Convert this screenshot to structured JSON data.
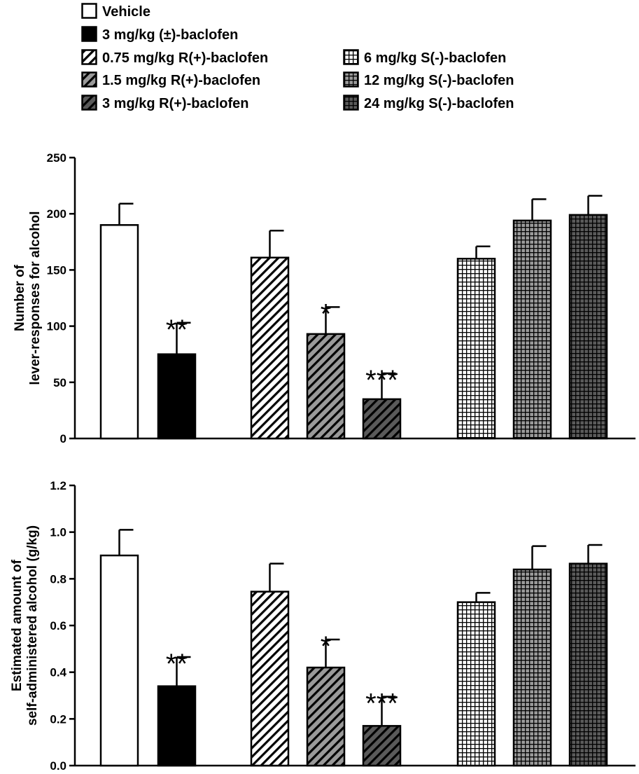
{
  "legend": {
    "items": [
      {
        "key": "vehicle",
        "label": "Vehicle"
      },
      {
        "key": "rac3",
        "label": "3 mg/kg (±)-baclofen"
      },
      {
        "key": "r075",
        "label": "0.75 mg/kg R(+)-baclofen"
      },
      {
        "key": "r15",
        "label": "1.5 mg/kg R(+)-baclofen"
      },
      {
        "key": "r3",
        "label": "3 mg/kg R(+)-baclofen"
      },
      {
        "key": "s6",
        "label": "6 mg/kg S(-)-baclofen"
      },
      {
        "key": "s12",
        "label": "12 mg/kg S(-)-baclofen"
      },
      {
        "key": "s24",
        "label": "24 mg/kg S(-)-baclofen"
      }
    ]
  },
  "styles": {
    "vehicle": {
      "pattern": "open",
      "fill": "#ffffff",
      "line": "#000000"
    },
    "rac3": {
      "pattern": "solid",
      "fill": "#000000",
      "line": "#000000"
    },
    "r075": {
      "pattern": "diag",
      "fill": "#ffffff",
      "line": "#000000"
    },
    "r15": {
      "pattern": "diag",
      "fill": "#9a9a9a",
      "line": "#000000"
    },
    "r3": {
      "pattern": "diag",
      "fill": "#5a5a5a",
      "line": "#000000"
    },
    "s6": {
      "pattern": "grid",
      "fill": "#ffffff",
      "line": "#000000"
    },
    "s12": {
      "pattern": "grid",
      "fill": "#9a9a9a",
      "line": "#000000"
    },
    "s24": {
      "pattern": "grid",
      "fill": "#5a5a5a",
      "line": "#000000"
    }
  },
  "chart_data": [
    {
      "type": "bar",
      "title": "",
      "xlabel": "",
      "ylabel": "Number of lever-responses for alcohol",
      "ylabel_lines": [
        "Number of",
        "lever-responses for alcohol"
      ],
      "ylim": [
        0,
        250
      ],
      "yticks": [
        0,
        50,
        100,
        150,
        200,
        250
      ],
      "ytick_labels": [
        "0",
        "50",
        "100",
        "150",
        "200",
        "250"
      ],
      "categories": [
        "Vehicle",
        "3 mg/kg (±)-baclofen",
        "0.75 mg/kg R(+)-baclofen",
        "1.5 mg/kg R(+)-baclofen",
        "3 mg/kg R(+)-baclofen",
        "6 mg/kg S(-)-baclofen",
        "12 mg/kg S(-)-baclofen",
        "24 mg/kg S(-)-baclofen"
      ],
      "keys": [
        "vehicle",
        "rac3",
        "r075",
        "r15",
        "r3",
        "s6",
        "s12",
        "s24"
      ],
      "values": [
        190,
        75,
        161,
        93,
        35,
        160,
        194,
        199
      ],
      "errors": [
        19,
        28,
        24,
        24,
        23,
        11,
        19,
        17
      ],
      "significance": [
        "",
        "**",
        "",
        "*",
        "***",
        "",
        "",
        ""
      ]
    },
    {
      "type": "bar",
      "title": "",
      "xlabel": "",
      "ylabel": "Estimated amount of self-administered alcohol (g/kg)",
      "ylabel_lines": [
        "Estimated amount of",
        "self-administered alcohol (g/kg)"
      ],
      "ylim": [
        0,
        1.2
      ],
      "yticks": [
        0,
        0.2,
        0.4,
        0.6,
        0.8,
        1.0,
        1.2
      ],
      "ytick_labels": [
        "0.0",
        "0.2",
        "0.4",
        "0.6",
        "0.8",
        "1.0",
        "1.2"
      ],
      "categories": [
        "Vehicle",
        "3 mg/kg (±)-baclofen",
        "0.75 mg/kg R(+)-baclofen",
        "1.5 mg/kg R(+)-baclofen",
        "3 mg/kg R(+)-baclofen",
        "6 mg/kg S(-)-baclofen",
        "12 mg/kg S(-)-baclofen",
        "24 mg/kg S(-)-baclofen"
      ],
      "keys": [
        "vehicle",
        "rac3",
        "r075",
        "r15",
        "r3",
        "s6",
        "s12",
        "s24"
      ],
      "values": [
        0.9,
        0.34,
        0.745,
        0.42,
        0.17,
        0.7,
        0.84,
        0.865
      ],
      "errors": [
        0.11,
        0.125,
        0.12,
        0.12,
        0.125,
        0.04,
        0.1,
        0.08
      ],
      "significance": [
        "",
        "**",
        "",
        "*",
        "***",
        "",
        "",
        ""
      ]
    }
  ]
}
